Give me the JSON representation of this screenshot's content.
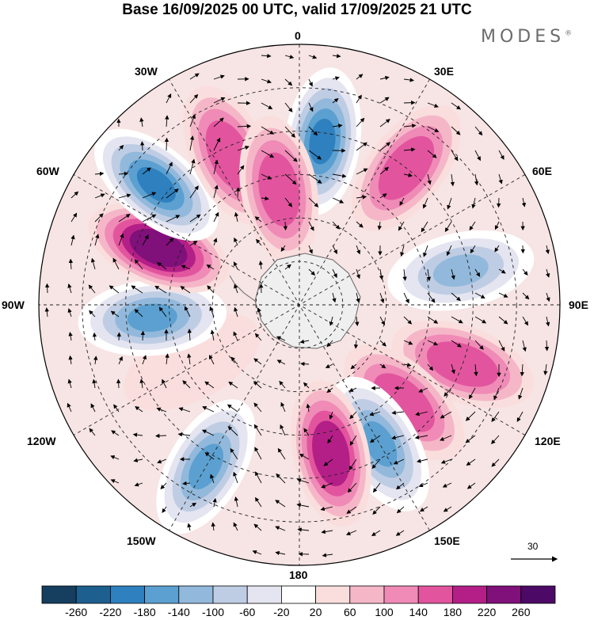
{
  "header": {
    "title": "Base 16/09/2025 00 UTC, valid 17/09/2025 21 UTC",
    "brand": "MODES",
    "brand_mark": "®"
  },
  "map": {
    "projection": "south-polar-stereographic",
    "labels": {
      "top": "0",
      "top_left": "30W",
      "top_right": "30E",
      "upper_left": "60W",
      "upper_right": "60E",
      "left": "90W",
      "right": "90E",
      "lower_left": "120W",
      "lower_right": "120E",
      "bottom_left": "150W",
      "bottom_right": "150E",
      "bottom": "180"
    },
    "reference_vector": {
      "value": "30"
    },
    "anomaly_centers": [
      {
        "lon": 8,
        "lat": -52,
        "value": -200
      },
      {
        "lon": 38,
        "lat": -50,
        "value": 160
      },
      {
        "lon": 78,
        "lat": -52,
        "value": -130
      },
      {
        "lon": 110,
        "lat": -50,
        "value": 140
      },
      {
        "lon": 133,
        "lat": -57,
        "value": 140
      },
      {
        "lon": 150,
        "lat": -53,
        "value": -150
      },
      {
        "lon": 168,
        "lat": -55,
        "value": 210
      },
      {
        "lon": -150,
        "lat": -47,
        "value": -160
      },
      {
        "lon": -118,
        "lat": -62,
        "value": 40
      },
      {
        "lon": -95,
        "lat": -56,
        "value": -150
      },
      {
        "lon": -68,
        "lat": -55,
        "value": 250
      },
      {
        "lon": -50,
        "lat": -47,
        "value": -200
      },
      {
        "lon": -25,
        "lat": -52,
        "value": 170
      },
      {
        "lon": -10,
        "lat": -63,
        "value": 170
      }
    ]
  },
  "colorbar": {
    "colors": [
      "#163e5e",
      "#1d5f8f",
      "#2f80bf",
      "#5ba0d0",
      "#92b9db",
      "#bfcde4",
      "#e4e5f0",
      "#ffffff",
      "#fadedd",
      "#f5b7c8",
      "#ef8bb6",
      "#e2559e",
      "#b41f87",
      "#80107a",
      "#4c0a66"
    ],
    "ticks": [
      "-260",
      "-220",
      "-180",
      "-140",
      "-100",
      "-60",
      "-20",
      "20",
      "60",
      "100",
      "140",
      "180",
      "220",
      "260"
    ]
  }
}
